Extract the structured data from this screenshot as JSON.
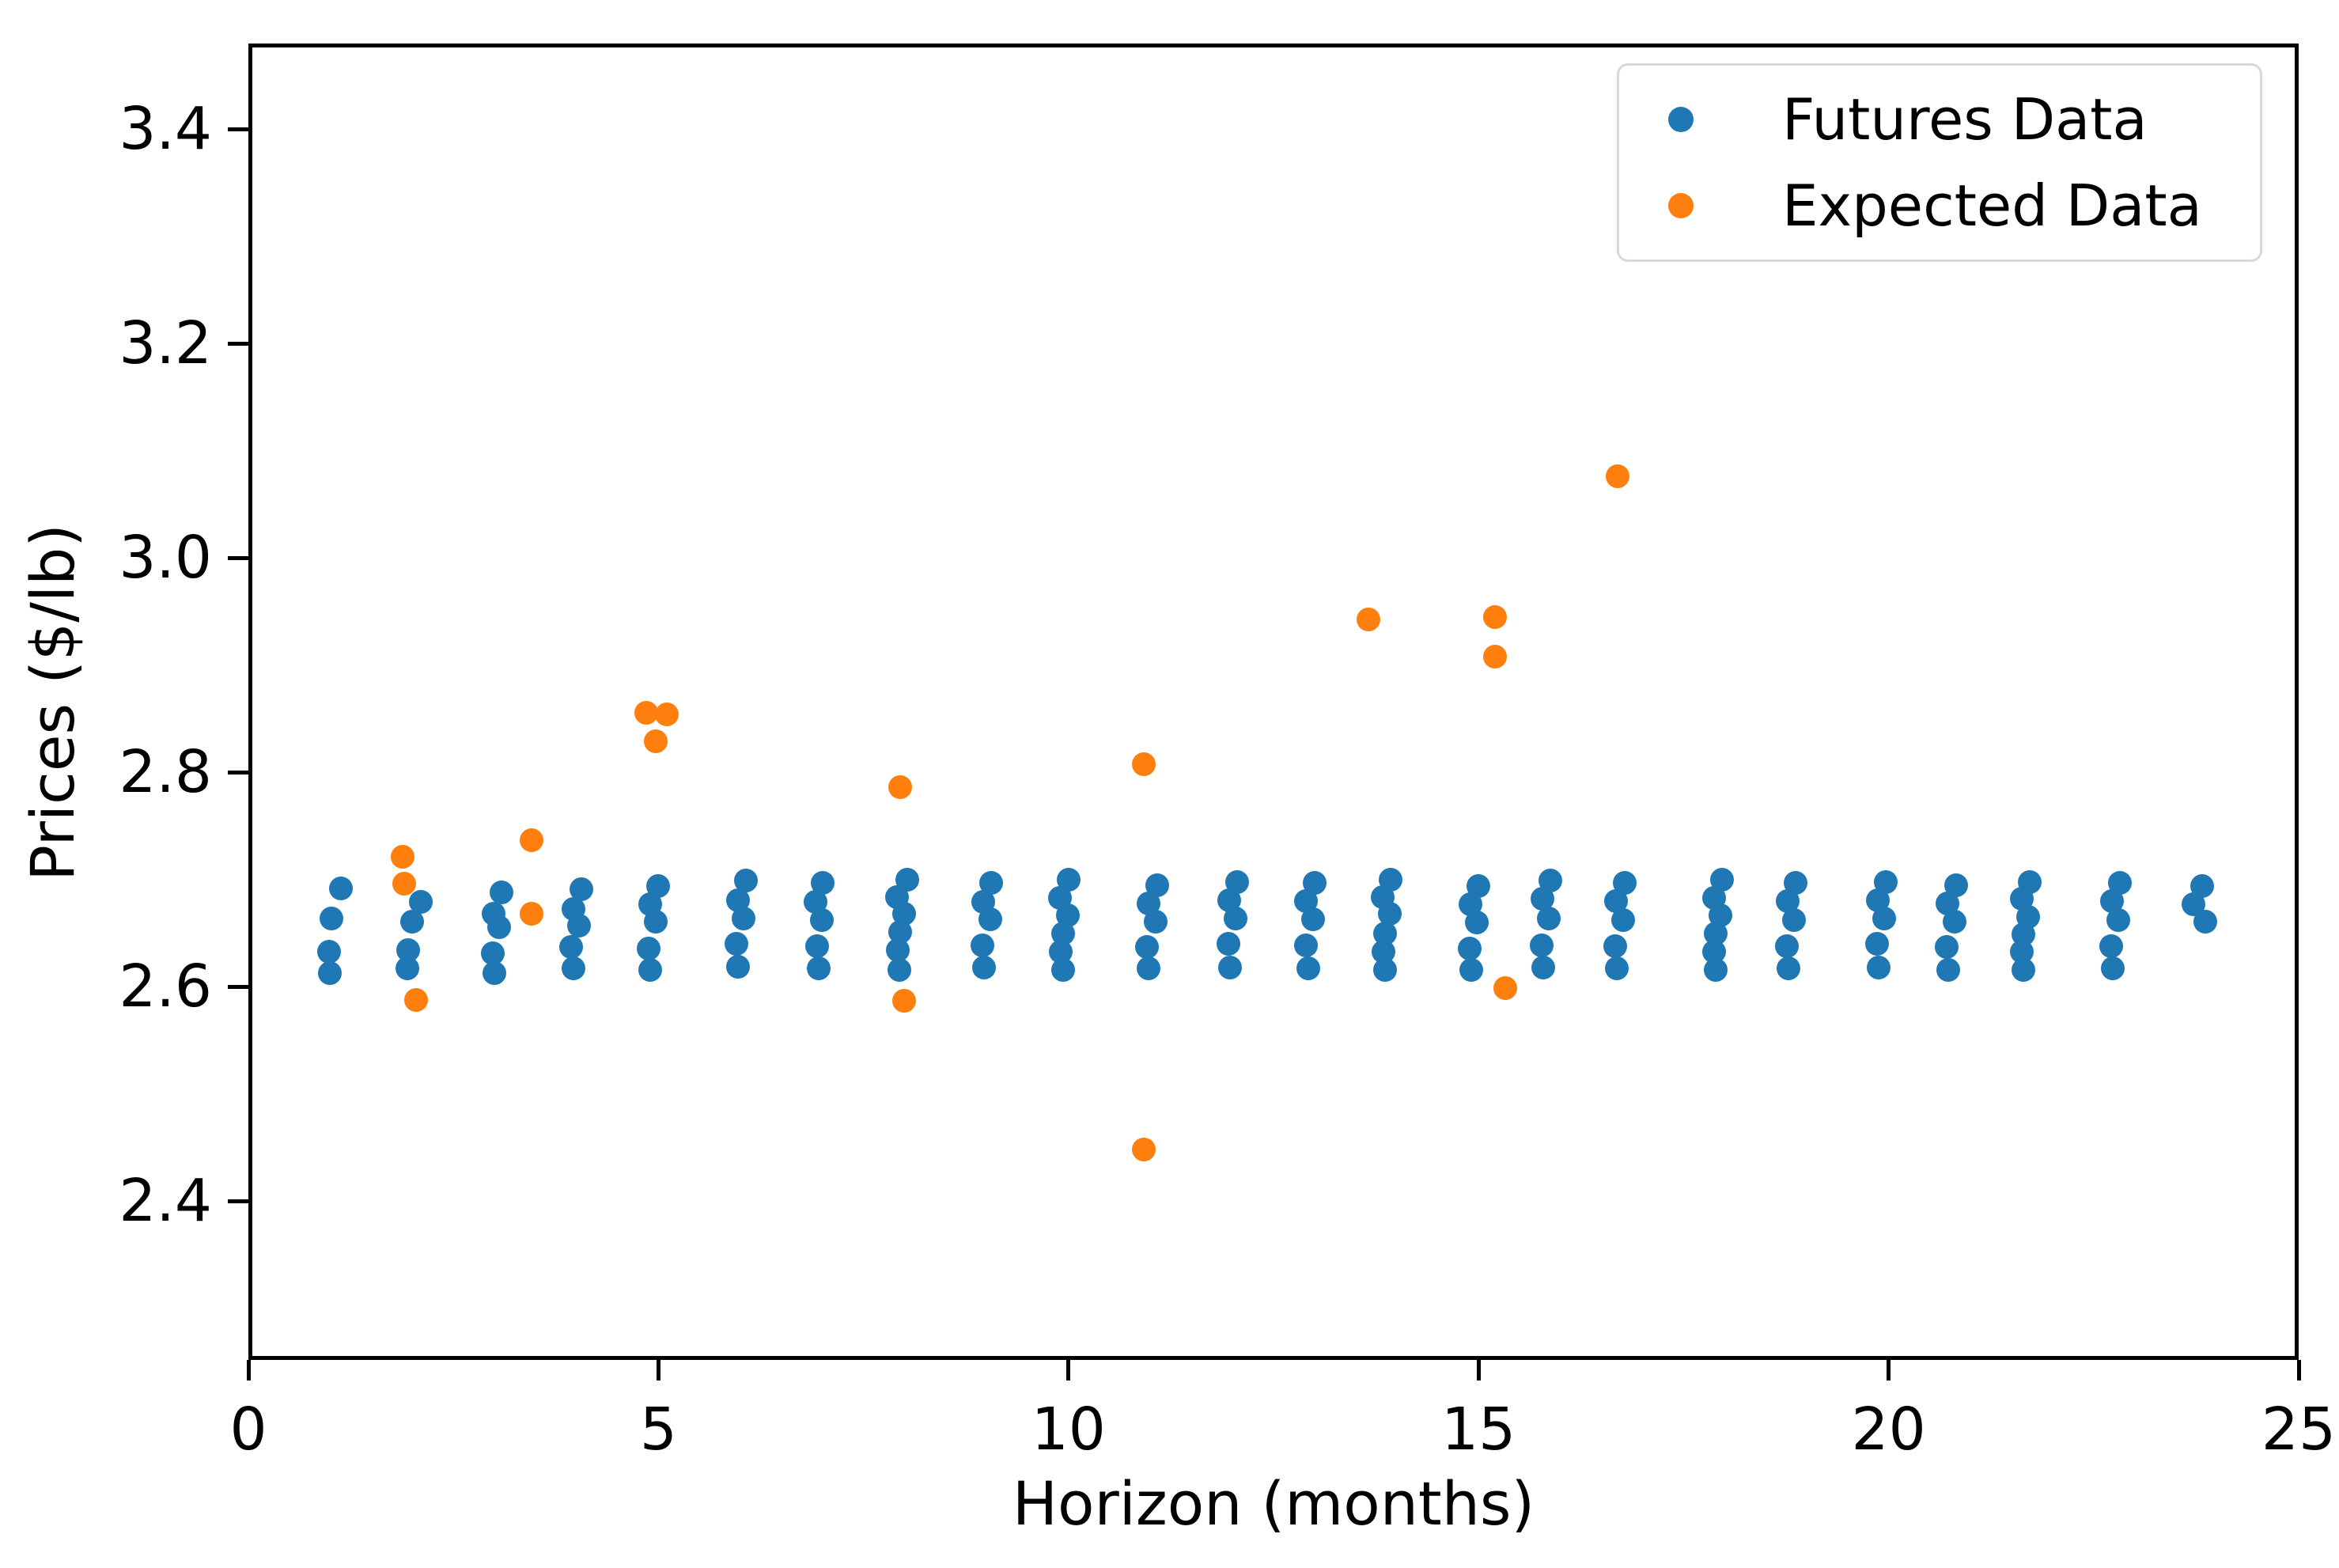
{
  "style": {
    "background": "#ffffff",
    "spine_color": "#000000",
    "legend_border": "#d9d9d9",
    "futures_color": "#1f77b4",
    "expected_color": "#ff7f0e"
  },
  "chart_data": {
    "type": "scatter",
    "title": "",
    "xlabel": "Horizon (months)",
    "ylabel": "Prices ($/lb)",
    "xlim": [
      0,
      25
    ],
    "ylim": [
      2.252,
      3.48
    ],
    "grid": false,
    "legend_position": "upper right",
    "xticks": [
      {
        "value": 0,
        "label": "0"
      },
      {
        "value": 5,
        "label": "5"
      },
      {
        "value": 10,
        "label": "10"
      },
      {
        "value": 15,
        "label": "15"
      },
      {
        "value": 20,
        "label": "20"
      },
      {
        "value": 25,
        "label": "25"
      }
    ],
    "yticks": [
      {
        "value": 2.4,
        "label": "2.4"
      },
      {
        "value": 2.6,
        "label": "2.6"
      },
      {
        "value": 2.8,
        "label": "2.8"
      },
      {
        "value": 3.0,
        "label": "3.0"
      },
      {
        "value": 3.2,
        "label": "3.2"
      },
      {
        "value": 3.4,
        "label": "3.4"
      }
    ],
    "series": [
      {
        "name": "Futures Data",
        "color": "#1f77b4",
        "marker": "circle",
        "points": [
          [
            1.13,
            2.692
          ],
          [
            1.01,
            2.664
          ],
          [
            0.98,
            2.633
          ],
          [
            0.99,
            2.613
          ],
          [
            2.1,
            2.679
          ],
          [
            2.0,
            2.661
          ],
          [
            1.95,
            2.634
          ],
          [
            1.94,
            2.617
          ],
          [
            3.09,
            2.688
          ],
          [
            2.99,
            2.668
          ],
          [
            3.06,
            2.656
          ],
          [
            2.98,
            2.631
          ],
          [
            3.0,
            2.613
          ],
          [
            4.06,
            2.691
          ],
          [
            3.96,
            2.673
          ],
          [
            4.03,
            2.657
          ],
          [
            3.94,
            2.637
          ],
          [
            3.96,
            2.617
          ],
          [
            5.0,
            2.694
          ],
          [
            4.9,
            2.677
          ],
          [
            4.97,
            2.661
          ],
          [
            4.88,
            2.636
          ],
          [
            4.9,
            2.616
          ],
          [
            6.07,
            2.699
          ],
          [
            5.97,
            2.681
          ],
          [
            6.04,
            2.664
          ],
          [
            5.95,
            2.64
          ],
          [
            5.97,
            2.619
          ],
          [
            7.0,
            2.697
          ],
          [
            6.92,
            2.679
          ],
          [
            6.99,
            2.662
          ],
          [
            6.93,
            2.638
          ],
          [
            6.95,
            2.617
          ],
          [
            8.03,
            2.7
          ],
          [
            7.91,
            2.684
          ],
          [
            8.0,
            2.668
          ],
          [
            7.95,
            2.651
          ],
          [
            7.92,
            2.634
          ],
          [
            7.94,
            2.616
          ],
          [
            9.06,
            2.697
          ],
          [
            8.96,
            2.679
          ],
          [
            9.05,
            2.663
          ],
          [
            8.95,
            2.639
          ],
          [
            8.97,
            2.618
          ],
          [
            10.0,
            2.7
          ],
          [
            9.9,
            2.683
          ],
          [
            9.99,
            2.667
          ],
          [
            9.93,
            2.65
          ],
          [
            9.91,
            2.633
          ],
          [
            9.93,
            2.616
          ],
          [
            11.08,
            2.695
          ],
          [
            10.98,
            2.678
          ],
          [
            11.06,
            2.661
          ],
          [
            10.96,
            2.637
          ],
          [
            10.98,
            2.617
          ],
          [
            12.06,
            2.698
          ],
          [
            11.96,
            2.681
          ],
          [
            12.04,
            2.664
          ],
          [
            11.95,
            2.64
          ],
          [
            11.97,
            2.618
          ],
          [
            13.0,
            2.697
          ],
          [
            12.9,
            2.68
          ],
          [
            12.98,
            2.663
          ],
          [
            12.9,
            2.639
          ],
          [
            12.92,
            2.617
          ],
          [
            13.93,
            2.7
          ],
          [
            13.83,
            2.684
          ],
          [
            13.92,
            2.668
          ],
          [
            13.86,
            2.65
          ],
          [
            13.84,
            2.633
          ],
          [
            13.86,
            2.616
          ],
          [
            15.0,
            2.694
          ],
          [
            14.9,
            2.677
          ],
          [
            14.98,
            2.66
          ],
          [
            14.89,
            2.636
          ],
          [
            14.91,
            2.616
          ],
          [
            15.88,
            2.699
          ],
          [
            15.78,
            2.682
          ],
          [
            15.86,
            2.664
          ],
          [
            15.77,
            2.639
          ],
          [
            15.79,
            2.618
          ],
          [
            16.78,
            2.697
          ],
          [
            16.68,
            2.68
          ],
          [
            16.76,
            2.662
          ],
          [
            16.67,
            2.638
          ],
          [
            16.69,
            2.617
          ],
          [
            17.97,
            2.7
          ],
          [
            17.87,
            2.683
          ],
          [
            17.95,
            2.667
          ],
          [
            17.89,
            2.65
          ],
          [
            17.87,
            2.633
          ],
          [
            17.89,
            2.616
          ],
          [
            18.87,
            2.697
          ],
          [
            18.77,
            2.68
          ],
          [
            18.85,
            2.662
          ],
          [
            18.76,
            2.638
          ],
          [
            18.78,
            2.617
          ],
          [
            19.97,
            2.698
          ],
          [
            19.87,
            2.681
          ],
          [
            19.95,
            2.664
          ],
          [
            19.86,
            2.64
          ],
          [
            19.88,
            2.618
          ],
          [
            20.82,
            2.695
          ],
          [
            20.72,
            2.678
          ],
          [
            20.8,
            2.661
          ],
          [
            20.71,
            2.637
          ],
          [
            20.73,
            2.616
          ],
          [
            21.72,
            2.698
          ],
          [
            21.62,
            2.682
          ],
          [
            21.7,
            2.665
          ],
          [
            21.64,
            2.649
          ],
          [
            21.62,
            2.633
          ],
          [
            21.64,
            2.616
          ],
          [
            22.82,
            2.697
          ],
          [
            22.72,
            2.68
          ],
          [
            22.8,
            2.662
          ],
          [
            22.71,
            2.638
          ],
          [
            22.73,
            2.617
          ],
          [
            23.82,
            2.694
          ],
          [
            23.72,
            2.677
          ],
          [
            23.86,
            2.661
          ]
        ]
      },
      {
        "name": "Expected Data",
        "color": "#ff7f0e",
        "marker": "circle",
        "points": [
          [
            1.88,
            2.721
          ],
          [
            1.9,
            2.696
          ],
          [
            2.04,
            2.588
          ],
          [
            3.45,
            2.737
          ],
          [
            3.45,
            2.668
          ],
          [
            4.85,
            2.856
          ],
          [
            5.1,
            2.854
          ],
          [
            4.97,
            2.829
          ],
          [
            7.95,
            2.786
          ],
          [
            8.0,
            2.587
          ],
          [
            10.92,
            2.808
          ],
          [
            10.92,
            2.448
          ],
          [
            13.66,
            2.943
          ],
          [
            15.2,
            2.945
          ],
          [
            15.2,
            2.908
          ],
          [
            15.33,
            2.599
          ],
          [
            16.7,
            3.076
          ]
        ]
      }
    ]
  }
}
